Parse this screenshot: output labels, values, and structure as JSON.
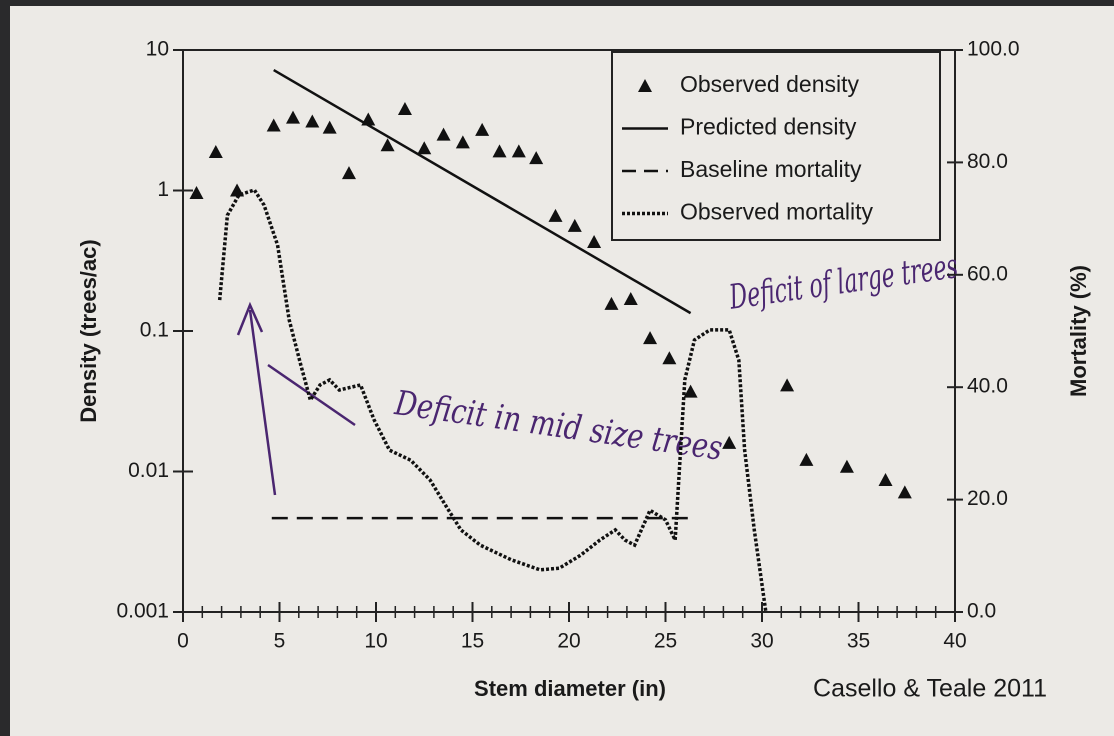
{
  "chart_data": {
    "type": "combo",
    "xlabel": "Stem diameter (in)",
    "ylabel": "Density (trees/ac)",
    "y2label": "Mortality (%)",
    "source": "Casello & Teale 2011",
    "xlim": [
      0,
      40
    ],
    "xticks": [
      0,
      5,
      10,
      15,
      20,
      25,
      30,
      35,
      40
    ],
    "ylim": [
      0.001,
      10
    ],
    "ylog": true,
    "yticks": [
      0.001,
      0.01,
      0.1,
      1,
      10
    ],
    "y2lim": [
      0,
      100
    ],
    "y2ticks": [
      {
        "value": 0,
        "label": "0.0"
      },
      {
        "value": 20,
        "label": "20.0"
      },
      {
        "value": 40,
        "label": "40.0"
      },
      {
        "value": 60,
        "label": "60.0"
      },
      {
        "value": 80,
        "label": "80.0"
      },
      {
        "value": 100,
        "label": "100.0"
      }
    ],
    "legend": "upper right",
    "series": [
      {
        "name": "Observed density",
        "style": "triangle",
        "color": "#111111",
        "x": [
          0.7,
          1.7,
          2.8,
          4.7,
          5.7,
          6.7,
          7.6,
          8.6,
          9.6,
          10.6,
          11.5,
          12.5,
          13.5,
          14.5,
          15.5,
          16.4,
          17.4,
          18.3,
          19.3,
          20.3,
          21.3,
          22.2,
          23.2,
          24.2,
          25.2,
          26.3,
          28.3,
          31.3,
          32.3,
          34.4,
          36.4,
          37.4
        ],
        "values": [
          0.96,
          1.88,
          1.0,
          2.9,
          3.3,
          3.1,
          2.8,
          1.33,
          3.2,
          2.1,
          3.8,
          2.0,
          2.5,
          2.2,
          2.7,
          1.9,
          1.9,
          1.7,
          0.66,
          0.56,
          0.43,
          0.156,
          0.169,
          0.089,
          0.064,
          0.037,
          0.016,
          0.041,
          0.0121,
          0.0108,
          0.0087,
          0.0071
        ]
      },
      {
        "name": "Predicted density",
        "style": "solid",
        "color": "#111111",
        "x": [
          4.7,
          26.3
        ],
        "values": [
          7.2,
          0.134
        ]
      },
      {
        "name": "Baseline mortality",
        "style": "dashed",
        "color": "#111111",
        "axis": "y2",
        "x": [
          4.6,
          26.3
        ],
        "values": [
          16.7,
          16.7
        ]
      },
      {
        "name": "Observed mortality",
        "style": "dotted",
        "color": "#111111",
        "axis": "y2",
        "x": [
          1.9,
          2.3,
          2.9,
          3.7,
          4.2,
          4.9,
          5.5,
          6.1,
          6.6,
          7.1,
          7.6,
          8.1,
          9.2,
          9.9,
          10.7,
          11.8,
          12.8,
          13.6,
          14.4,
          15.4,
          17.0,
          18.5,
          19.5,
          20.6,
          21.6,
          22.4,
          22.9,
          23.4,
          24.2,
          25.0,
          25.5,
          26.0,
          26.5,
          27.3,
          28.3,
          28.8,
          29.1,
          29.6,
          30.2
        ],
        "values": [
          55.5,
          70.6,
          74.2,
          75.1,
          72.4,
          65.3,
          52,
          44,
          37.7,
          40.4,
          41.3,
          39.5,
          40.4,
          34.2,
          28.8,
          27,
          23.5,
          19,
          14.6,
          11.9,
          9.3,
          7.5,
          7.8,
          10.1,
          12.8,
          14.6,
          12.8,
          11.9,
          18.1,
          16.4,
          12.8,
          41.3,
          48.4,
          50.2,
          50.2,
          44.8,
          28.8,
          14.6,
          0
        ]
      }
    ],
    "annotations": [
      "Deficit in mid size trees",
      "Deficit of large trees"
    ]
  }
}
